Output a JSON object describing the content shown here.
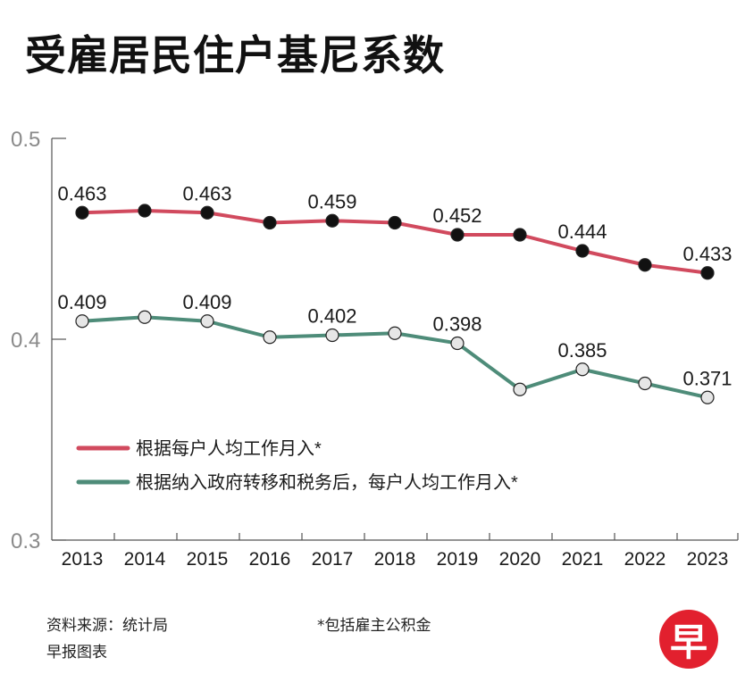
{
  "title": "受雇居民住户基尼系数",
  "chart_data": {
    "type": "line",
    "x": [
      "2013",
      "2014",
      "2015",
      "2016",
      "2017",
      "2018",
      "2019",
      "2020",
      "2021",
      "2022",
      "2023"
    ],
    "ylim": [
      0.3,
      0.5
    ],
    "yticks": [
      {
        "value": 0.5,
        "label": "0.5"
      },
      {
        "value": 0.4,
        "label": "0.4"
      },
      {
        "value": 0.3,
        "label": "0.3"
      }
    ],
    "series": [
      {
        "name": "根据每户人均工作月入*",
        "color": "#d14a5e",
        "marker_fill": "#111111",
        "values": [
          0.463,
          0.464,
          0.463,
          0.458,
          0.459,
          0.458,
          0.452,
          0.452,
          0.444,
          0.437,
          0.433
        ],
        "data_labels": [
          {
            "index": 0,
            "text": "0.463"
          },
          {
            "index": 2,
            "text": "0.463"
          },
          {
            "index": 4,
            "text": "0.459"
          },
          {
            "index": 6,
            "text": "0.452"
          },
          {
            "index": 8,
            "text": "0.444"
          },
          {
            "index": 10,
            "text": "0.433"
          }
        ]
      },
      {
        "name": "根据纳入政府转移和税务后，每户人均工作月入*",
        "color": "#4e8c79",
        "marker_fill": "#e6e6e6",
        "values": [
          0.409,
          0.411,
          0.409,
          0.401,
          0.402,
          0.403,
          0.398,
          0.375,
          0.385,
          0.378,
          0.371
        ],
        "data_labels": [
          {
            "index": 0,
            "text": "0.409"
          },
          {
            "index": 2,
            "text": "0.409"
          },
          {
            "index": 4,
            "text": "0.402"
          },
          {
            "index": 6,
            "text": "0.398"
          },
          {
            "index": 8,
            "text": "0.385"
          },
          {
            "index": 10,
            "text": "0.371"
          }
        ]
      }
    ]
  },
  "footer": {
    "source": "资料来源：统计局",
    "credit": "早报图表",
    "footnote": "*包括雇主公积金",
    "logo_char": "早"
  }
}
